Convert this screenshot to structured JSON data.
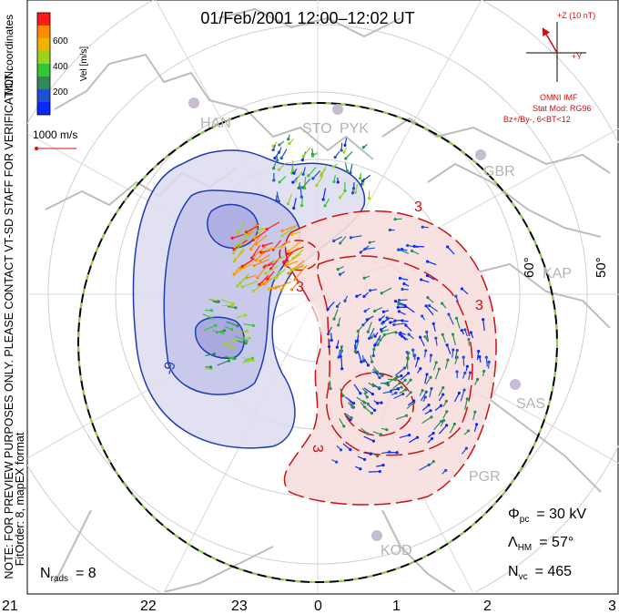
{
  "header": {
    "title": "01/Feb/2001 12:00–12:02 UT"
  },
  "colorbar": {
    "title": "Vel [m/s]",
    "ticks": [
      "600",
      "400",
      "200"
    ],
    "colors": [
      "#ff1a1a",
      "#ff8c00",
      "#f0b400",
      "#9bd21e",
      "#32c832",
      "#2e8b57",
      "#1e50d2",
      "#0a28ff"
    ]
  },
  "left_labels": {
    "mlt_coordinates": "MLT coordinates",
    "note": "NOTE: FOR PREVIEW PURPOSES ONLY. PLEASE CONTACT VT-SD STAFF FOR VERIFICATION.",
    "fitorder": "FitOrder: 8, mapEX format"
  },
  "scale": {
    "label": "1000 m/s"
  },
  "imf": {
    "plus_z": "+Z (10 nT)",
    "plus_y": "+Y",
    "source": "OMNI IMF",
    "stat_mod": "Stat Mod: RG96",
    "condition": "Bz+/By-, 6<BT<12"
  },
  "stations": [
    "HAN",
    "STO",
    "PYK",
    "GBR",
    "KAP",
    "SAS",
    "PGR",
    "KOD"
  ],
  "latitude_labels": [
    "60°",
    "50°"
  ],
  "contour_labels": [
    "-9",
    "3",
    "3",
    "3",
    "3"
  ],
  "stats": {
    "phi_pc_symbol": "Φ",
    "phi_pc_sub": "pc",
    "phi_pc_value": "= 30 kV",
    "lambda_symbol": "Λ",
    "lambda_sub": "HM",
    "lambda_value": "= 57°",
    "nvc_symbol": "N",
    "nvc_sub": "vc",
    "nvc_value": "= 465",
    "nrads_symbol": "N",
    "nrads_sub": "rads",
    "nrads_value": "= 8"
  },
  "mlt_axis": [
    "21",
    "22",
    "23",
    "0",
    "1",
    "2",
    "3"
  ]
}
